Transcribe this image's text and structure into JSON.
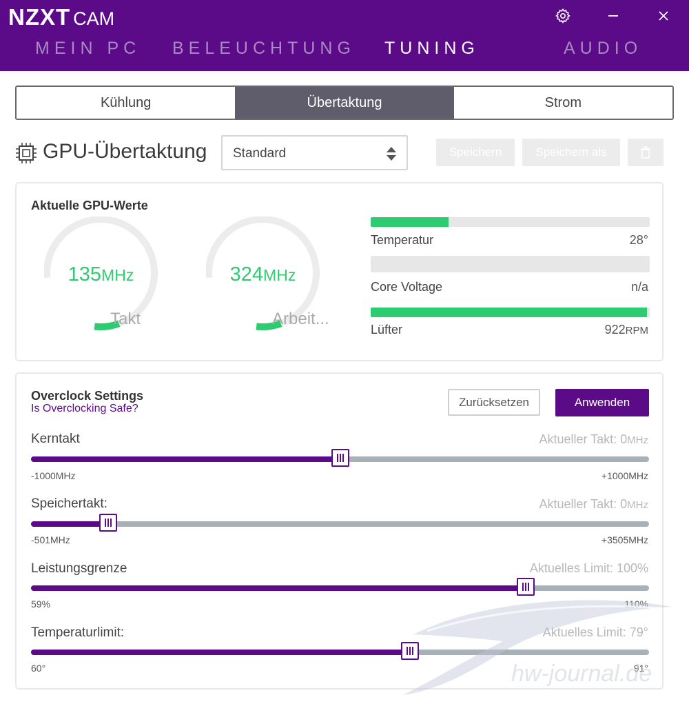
{
  "header": {
    "brand": "NZXT",
    "product": "CAM",
    "nav": [
      {
        "label": "MEIN PC"
      },
      {
        "label": "BELEUCHTUNG"
      },
      {
        "label": "TUNING"
      },
      {
        "label": "AUDIO"
      }
    ],
    "active_nav": "TUNING",
    "icons": [
      "gear-icon",
      "minimize-icon",
      "close-icon"
    ]
  },
  "subtabs": [
    {
      "label": "Kühlung"
    },
    {
      "label": "Übertaktung"
    },
    {
      "label": "Strom"
    }
  ],
  "active_subtab": "Übertaktung",
  "titlebar": {
    "title": "GPU-Übertaktung",
    "profile": "Standard",
    "save": "Speichern",
    "save_as": "Speichern als"
  },
  "gpu": {
    "title": "Aktuelle GPU-Werte",
    "gauges": [
      {
        "value": "135",
        "unit": "MHz",
        "label": "Takt",
        "fill": 0.08
      },
      {
        "value": "324",
        "unit": "MHz",
        "label": "Arbeit...",
        "fill": 0.08
      }
    ],
    "metrics": [
      {
        "label": "Temperatur",
        "value": "28°",
        "unit": "",
        "fill": 0.28
      },
      {
        "label": "Core Voltage",
        "value": "n/a",
        "unit": "",
        "fill": 0
      },
      {
        "label": "Lüfter",
        "value": "922",
        "unit": "RPM",
        "fill": 0.99
      }
    ],
    "accent": "#2ecc71"
  },
  "oc": {
    "title": "Overclock Settings",
    "safe_link": "Is Overclocking Safe?",
    "reset": "Zurücksetzen",
    "apply": "Anwenden",
    "sliders": [
      {
        "label": "Kerntakt",
        "current": "Aktueller Takt: 0",
        "current_unit": "MHz",
        "min": "-1000MHz",
        "max": "+1000MHz",
        "position": 0.5
      },
      {
        "label": "Speichertakt:",
        "current": "Aktueller Takt: 0",
        "current_unit": "MHz",
        "min": "-501MHz",
        "max": "+3505MHz",
        "position": 0.125
      },
      {
        "label": "Leistungsgrenze",
        "current": "Aktuelles Limit: 100%",
        "current_unit": "",
        "min": "59%",
        "max": "110%",
        "position": 0.8
      },
      {
        "label": "Temperaturlimit:",
        "current": "Aktuelles Limit: 79°",
        "current_unit": "",
        "min": "60°",
        "max": "91°",
        "position": 0.613
      }
    ],
    "accent": "#5b0a88"
  },
  "watermark": "hw-journal.de"
}
